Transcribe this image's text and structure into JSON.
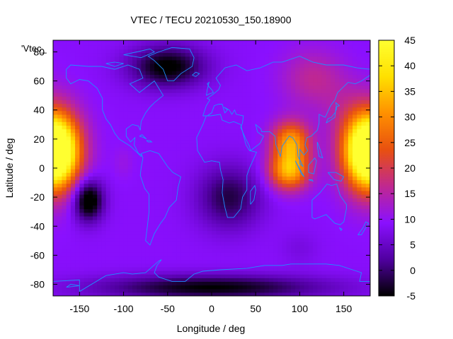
{
  "chart_data": {
    "type": "heatmap",
    "title": "VTEC / TECU 20210530_150.18900",
    "xlabel": "Longitude / deg",
    "ylabel": "Latitude / deg",
    "xlim": [
      -180,
      180
    ],
    "ylim": [
      -88,
      88
    ],
    "x_ticks": [
      -150,
      -100,
      -50,
      0,
      50,
      100,
      150
    ],
    "y_ticks": [
      -80,
      -60,
      -40,
      -20,
      0,
      20,
      40,
      60,
      80
    ],
    "colorbar": {
      "range": [
        -5,
        45
      ],
      "ticks": [
        -5,
        0,
        5,
        10,
        15,
        20,
        25,
        30,
        35,
        40,
        45
      ],
      "palette": [
        "#000000",
        "#5000a0",
        "#8a10ff",
        "#c02890",
        "#e85010",
        "#ff9000",
        "#ffe000",
        "#ffff30"
      ]
    },
    "legend_entry": "'Vtec_",
    "background_level": 9,
    "hotspots": [
      {
        "lon": -180,
        "lat": 12,
        "value": 41,
        "spread_lon": 18,
        "spread_lat": 16
      },
      {
        "lon": 180,
        "lat": 12,
        "value": 36,
        "spread_lon": 22,
        "spread_lat": 20
      },
      {
        "lon": 90,
        "lat": 18,
        "value": 32,
        "spread_lon": 15,
        "spread_lat": 10
      },
      {
        "lon": 88,
        "lat": -2,
        "value": 33,
        "spread_lon": 16,
        "spread_lat": 9
      },
      {
        "lon": 115,
        "lat": 62,
        "value": 16,
        "spread_lon": 25,
        "spread_lat": 14
      },
      {
        "lon": 150,
        "lat": 40,
        "value": 12,
        "spread_lon": 20,
        "spread_lat": 15
      },
      {
        "lon": -100,
        "lat": 4,
        "value": 11,
        "spread_lon": 8,
        "spread_lat": 8
      },
      {
        "lon": 100,
        "lat": -55,
        "value": 7,
        "spread_lon": 15,
        "spread_lat": 8
      }
    ],
    "lows": [
      {
        "lon": -140,
        "lat": -22,
        "value": -9,
        "spread_lon": 12,
        "spread_lat": 10
      },
      {
        "lon": -50,
        "lat": 70,
        "value": -6,
        "spread_lon": 30,
        "spread_lat": 10
      },
      {
        "lon": 0,
        "lat": -82,
        "value": -5,
        "spread_lon": 90,
        "spread_lat": 6
      },
      {
        "lon": 20,
        "lat": -20,
        "value": -2,
        "spread_lon": 25,
        "spread_lat": 15
      }
    ],
    "coastline_color": "#1e90ff"
  }
}
